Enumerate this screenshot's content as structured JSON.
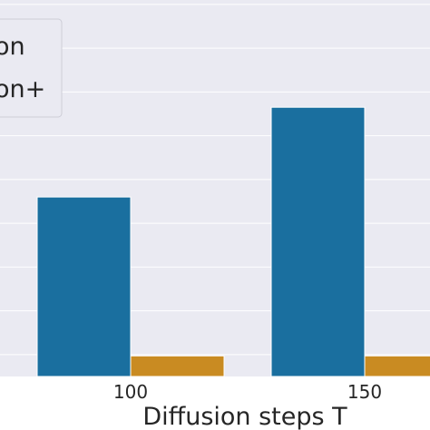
{
  "chart_data": {
    "type": "bar",
    "xlabel": "Diffusion steps T",
    "ylabel": "",
    "categories": [
      "100",
      "150"
    ],
    "series": [
      {
        "name": "on",
        "color": "#1a6f9f",
        "values": [
          4.1,
          6.15
        ]
      },
      {
        "name": "on+",
        "color": "#c98b22",
        "values": [
          0.47,
          0.47
        ]
      }
    ],
    "ylim": [
      0,
      8.6
    ],
    "grid": true,
    "legend": "top-left",
    "background": "#eaeaf2"
  }
}
